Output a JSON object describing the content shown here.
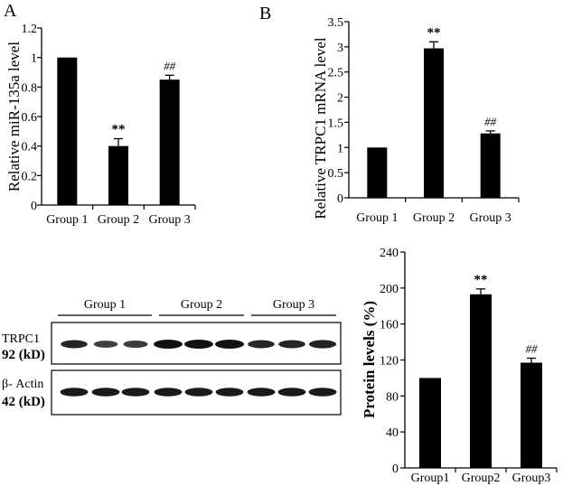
{
  "panels": {
    "a": "A",
    "b": "B"
  },
  "colors": {
    "bar": "#000000",
    "axis": "#000000",
    "band": "#111111",
    "background": "#ffffff"
  },
  "chart_data": [
    {
      "type": "bar",
      "id": "chart-a",
      "panel": "A",
      "categories": [
        "Group 1",
        "Group 2",
        "Group 3"
      ],
      "values": [
        1.0,
        0.4,
        0.85
      ],
      "errors": [
        0,
        0.05,
        0.03
      ],
      "annotations": [
        "",
        "**",
        "##"
      ],
      "title": "",
      "xlabel": "",
      "ylabel": "Relative miR-135a level",
      "ylim": [
        0,
        1.2
      ],
      "yticks": [
        "0",
        "0.2",
        "0.4",
        "0.6",
        "0.8",
        "1",
        "1.2"
      ],
      "grid": false
    },
    {
      "type": "bar",
      "id": "chart-b",
      "panel": "B",
      "categories": [
        "Group 1",
        "Group 2",
        "Group 3"
      ],
      "values": [
        1.0,
        2.97,
        1.28
      ],
      "errors": [
        0,
        0.13,
        0.05
      ],
      "annotations": [
        "",
        "**",
        "##"
      ],
      "title": "",
      "xlabel": "",
      "ylabel": "Relative TRPC1 mRNA level",
      "ylim": [
        0,
        3.5
      ],
      "yticks": [
        "0",
        "0.5",
        "1",
        "1.5",
        "2",
        "2.5",
        "3",
        "3.5"
      ],
      "grid": false
    },
    {
      "type": "bar",
      "id": "chart-c",
      "categories": [
        "Group1",
        "Group2",
        "Group3"
      ],
      "values": [
        100,
        193,
        117
      ],
      "errors": [
        0,
        6,
        5
      ],
      "annotations": [
        "",
        "**",
        "##"
      ],
      "title": "",
      "xlabel": "",
      "ylabel": "Protein levels (%)",
      "ylim": [
        0,
        240
      ],
      "yticks": [
        "0",
        "40",
        "80",
        "120",
        "160",
        "200",
        "240"
      ],
      "grid": false
    }
  ],
  "western_blot": {
    "groups": [
      "Group 1",
      "Group 2",
      "Group 3"
    ],
    "rows": [
      {
        "name": "TRPC1",
        "size": "92 (kD)",
        "intensities": [
          0.8,
          0.55,
          0.6,
          1.0,
          1.0,
          1.0,
          0.8,
          0.8,
          0.85
        ]
      },
      {
        "name": "β- Actin",
        "size": "42 (kD)",
        "intensities": [
          0.9,
          0.9,
          0.9,
          0.9,
          0.9,
          0.9,
          0.9,
          0.9,
          0.9
        ]
      }
    ]
  }
}
